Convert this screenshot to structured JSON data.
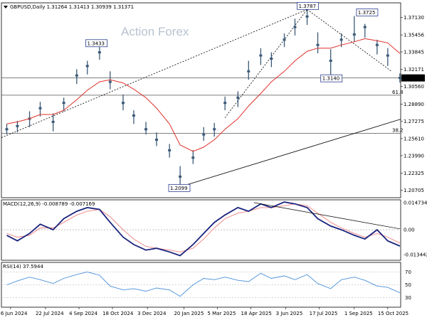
{
  "header": {
    "symbol_line": "GBPUSD,Daily  1.31264 1.31413 1.30939 1.31371",
    "watermark": "Action Forex",
    "current_price": "1.31371"
  },
  "colors": {
    "candles": "#3b5a78",
    "ma": "#e0302a",
    "macd_line": "#1a237e",
    "macd_signal": "#f08080",
    "rsi": "#4a90d9",
    "price_tag_bg": "#000000"
  },
  "chart_data": [
    {
      "type": "candlestick",
      "title": "GBPUSD,Daily",
      "ohlc_last": {
        "open": 1.31264,
        "high": 1.31413,
        "low": 1.30939,
        "close": 1.31371
      },
      "ylim": [
        1.2,
        1.385
      ],
      "yticks": [
        "1.37130",
        "1.35456",
        "1.33845",
        "1.32171",
        "1.30560",
        "1.28890",
        "1.27275",
        "1.25610",
        "1.23990",
        "1.22325",
        "1.20705"
      ],
      "xticks": [
        "6 Jun 2024",
        "22 Jul 2024",
        "4 Sep 2024",
        "18 Oct 2024",
        "3 Dec 2024",
        "20 Jan 2025",
        "5 Mar 2025",
        "18 Apr 2025",
        "3 Jun 2025",
        "17 Jul 2025",
        "1 Sep 2025",
        "15 Oct 2025"
      ],
      "x": [
        "2024-06-01",
        "2024-06-15",
        "2024-07-01",
        "2024-07-15",
        "2024-08-01",
        "2024-08-15",
        "2024-09-01",
        "2024-09-15",
        "2024-10-01",
        "2024-10-15",
        "2024-11-01",
        "2024-11-15",
        "2024-12-01",
        "2024-12-15",
        "2025-01-01",
        "2025-01-15",
        "2025-02-01",
        "2025-02-15",
        "2025-03-01",
        "2025-03-15",
        "2025-04-01",
        "2025-04-15",
        "2025-05-01",
        "2025-05-15",
        "2025-06-01",
        "2025-06-15",
        "2025-07-01",
        "2025-07-15",
        "2025-08-01",
        "2025-08-15",
        "2025-09-01",
        "2025-09-15",
        "2025-10-01",
        "2025-10-15",
        "2025-10-31"
      ],
      "close": [
        1.265,
        1.268,
        1.275,
        1.285,
        1.272,
        1.29,
        1.316,
        1.325,
        1.338,
        1.31,
        1.29,
        1.278,
        1.265,
        1.255,
        1.245,
        1.22,
        1.238,
        1.26,
        1.265,
        1.29,
        1.295,
        1.32,
        1.335,
        1.332,
        1.35,
        1.362,
        1.372,
        1.345,
        1.33,
        1.35,
        1.355,
        1.362,
        1.345,
        1.335,
        1.3137
      ],
      "high": [
        1.27,
        1.273,
        1.282,
        1.291,
        1.28,
        1.295,
        1.322,
        1.33,
        1.343,
        1.32,
        1.298,
        1.283,
        1.272,
        1.262,
        1.251,
        1.23,
        1.245,
        1.267,
        1.271,
        1.296,
        1.301,
        1.33,
        1.342,
        1.338,
        1.356,
        1.37,
        1.3787,
        1.357,
        1.341,
        1.356,
        1.3725,
        1.365,
        1.35,
        1.342,
        1.3181
      ],
      "low": [
        1.26,
        1.262,
        1.267,
        1.277,
        1.263,
        1.282,
        1.308,
        1.317,
        1.331,
        1.303,
        1.283,
        1.27,
        1.26,
        1.249,
        1.238,
        1.2099,
        1.232,
        1.254,
        1.258,
        1.283,
        1.286,
        1.312,
        1.326,
        1.324,
        1.343,
        1.354,
        1.364,
        1.337,
        1.314,
        1.343,
        1.348,
        1.352,
        1.336,
        1.325,
        1.3094
      ],
      "moving_average": [
        1.27,
        1.272,
        1.275,
        1.279,
        1.279,
        1.283,
        1.293,
        1.302,
        1.31,
        1.312,
        1.309,
        1.303,
        1.295,
        1.285,
        1.27,
        1.25,
        1.244,
        1.248,
        1.255,
        1.265,
        1.275,
        1.287,
        1.299,
        1.31,
        1.32,
        1.33,
        1.339,
        1.342,
        1.342,
        1.345,
        1.348,
        1.351,
        1.349,
        1.347,
        1.337
      ],
      "annotations": [
        {
          "label": "1.3433",
          "date": "2024-09-26",
          "price": 1.3433
        },
        {
          "label": "1.2099",
          "date": "2025-01-13",
          "price": 1.2099
        },
        {
          "label": "1.3787",
          "date": "2025-07-01",
          "price": 1.3787
        },
        {
          "label": "1.3140",
          "date": "2025-08-01",
          "price": 1.314
        },
        {
          "label": "1.3725",
          "date": "2025-09-17",
          "price": 1.3725
        }
      ],
      "levels": [
        {
          "label": "61.8",
          "price": 1.2973
        },
        {
          "label": "38.2",
          "price": 1.261
        },
        {
          "label": "",
          "price": 1.3137
        }
      ]
    },
    {
      "type": "line",
      "title": "MACD(12,26,9) -0.008789 -0.007169",
      "yticks": [
        "0.014734",
        "0.00",
        "-0.013442"
      ],
      "ylim": [
        -0.0165,
        0.0162
      ],
      "series": [
        {
          "values": [
            -0.003,
            -0.006,
            -0.002,
            0.003,
            0.0,
            0.006,
            0.01,
            0.012,
            0.011,
            0.004,
            -0.004,
            -0.008,
            -0.011,
            -0.01,
            -0.012,
            -0.014,
            -0.008,
            -0.002,
            0.004,
            0.008,
            0.012,
            0.01,
            0.014,
            0.012,
            0.015,
            0.014,
            0.012,
            0.006,
            0.002,
            0.0,
            -0.003,
            -0.005,
            0.0,
            -0.006,
            -0.0088
          ]
        },
        {
          "values": [
            -0.002,
            -0.004,
            -0.003,
            0.001,
            0.001,
            0.004,
            0.008,
            0.01,
            0.011,
            0.007,
            0.0,
            -0.005,
            -0.009,
            -0.01,
            -0.011,
            -0.012,
            -0.01,
            -0.005,
            0.001,
            0.006,
            0.009,
            0.01,
            0.012,
            0.012,
            0.013,
            0.014,
            0.013,
            0.009,
            0.004,
            0.001,
            -0.002,
            -0.004,
            -0.002,
            -0.004,
            -0.0072
          ]
        }
      ]
    },
    {
      "type": "line",
      "title": "RSI(14) 37.5944",
      "yticks": [
        "70",
        "50",
        "30"
      ],
      "ylim": [
        15,
        85
      ],
      "series": [
        {
          "values": [
            50,
            56,
            62,
            58,
            52,
            60,
            66,
            70,
            65,
            48,
            42,
            44,
            40,
            45,
            42,
            32,
            50,
            60,
            58,
            62,
            57,
            55,
            68,
            60,
            64,
            58,
            66,
            52,
            44,
            58,
            62,
            57,
            48,
            46,
            37.6
          ]
        }
      ]
    }
  ]
}
